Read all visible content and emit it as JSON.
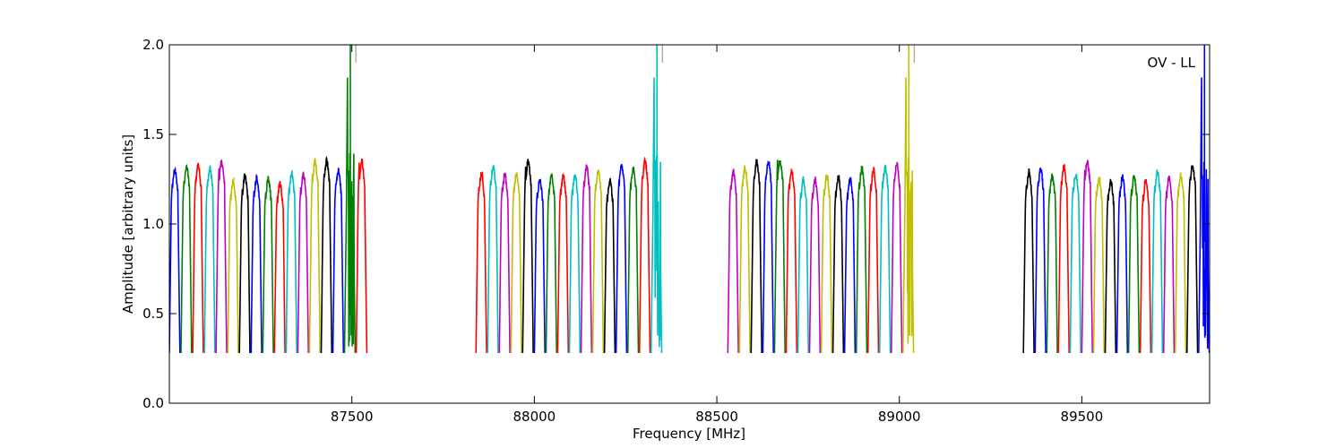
{
  "chart_data": {
    "type": "line",
    "title": "",
    "annotation": "OV - LL",
    "xlabel": "Frequency [MHz]",
    "ylabel": "Amplitude [arbitrary units]",
    "xlim": [
      87000,
      89850
    ],
    "ylim": [
      0.0,
      2.0
    ],
    "xticks": [
      87500,
      88000,
      88500,
      89000,
      89500
    ],
    "xtick_labels": [
      "87500",
      "88000",
      "88500",
      "89000",
      "89500"
    ],
    "yticks": [
      0.0,
      0.5,
      1.0,
      1.5,
      2.0
    ],
    "ytick_labels": [
      "0.0",
      "0.5",
      "1.0",
      "1.5",
      "2.0"
    ],
    "grid": false,
    "color_cycle": [
      "#0000ff",
      "#008000",
      "#ff0000",
      "#00bfbf",
      "#bf00bf",
      "#bfbf00",
      "#000000"
    ],
    "band_edge_color": "#aaaaaa",
    "bands": [
      {
        "start": 87000,
        "width": 32,
        "count": 17,
        "first_color": 0,
        "peaks": [
          1.25,
          1.27,
          1.28,
          1.26,
          1.36,
          1.19,
          1.22,
          1.21,
          1.2,
          1.18,
          1.23,
          1.23,
          1.32,
          1.32,
          1.25,
          2.0,
          1.4
        ]
      },
      {
        "start": 87840,
        "width": 32,
        "count": 16,
        "first_color": 2,
        "peaks": [
          1.23,
          1.27,
          1.23,
          1.23,
          1.37,
          1.2,
          1.22,
          1.22,
          1.22,
          1.27,
          1.25,
          1.19,
          1.28,
          1.26,
          1.3,
          2.0
        ]
      },
      {
        "start": 88530,
        "width": 32,
        "count": 16,
        "first_color": 4,
        "peaks": [
          1.24,
          1.26,
          1.3,
          1.3,
          1.42,
          1.25,
          1.2,
          1.2,
          1.22,
          1.21,
          1.2,
          1.26,
          1.25,
          1.27,
          1.28,
          2.0
        ]
      },
      {
        "start": 89340,
        "width": 32,
        "count": 16,
        "first_color": 6,
        "peaks": [
          1.24,
          1.26,
          1.22,
          1.27,
          1.23,
          1.35,
          1.21,
          1.19,
          1.21,
          1.22,
          1.19,
          1.24,
          1.21,
          1.22,
          1.28,
          2.0
        ]
      }
    ]
  }
}
